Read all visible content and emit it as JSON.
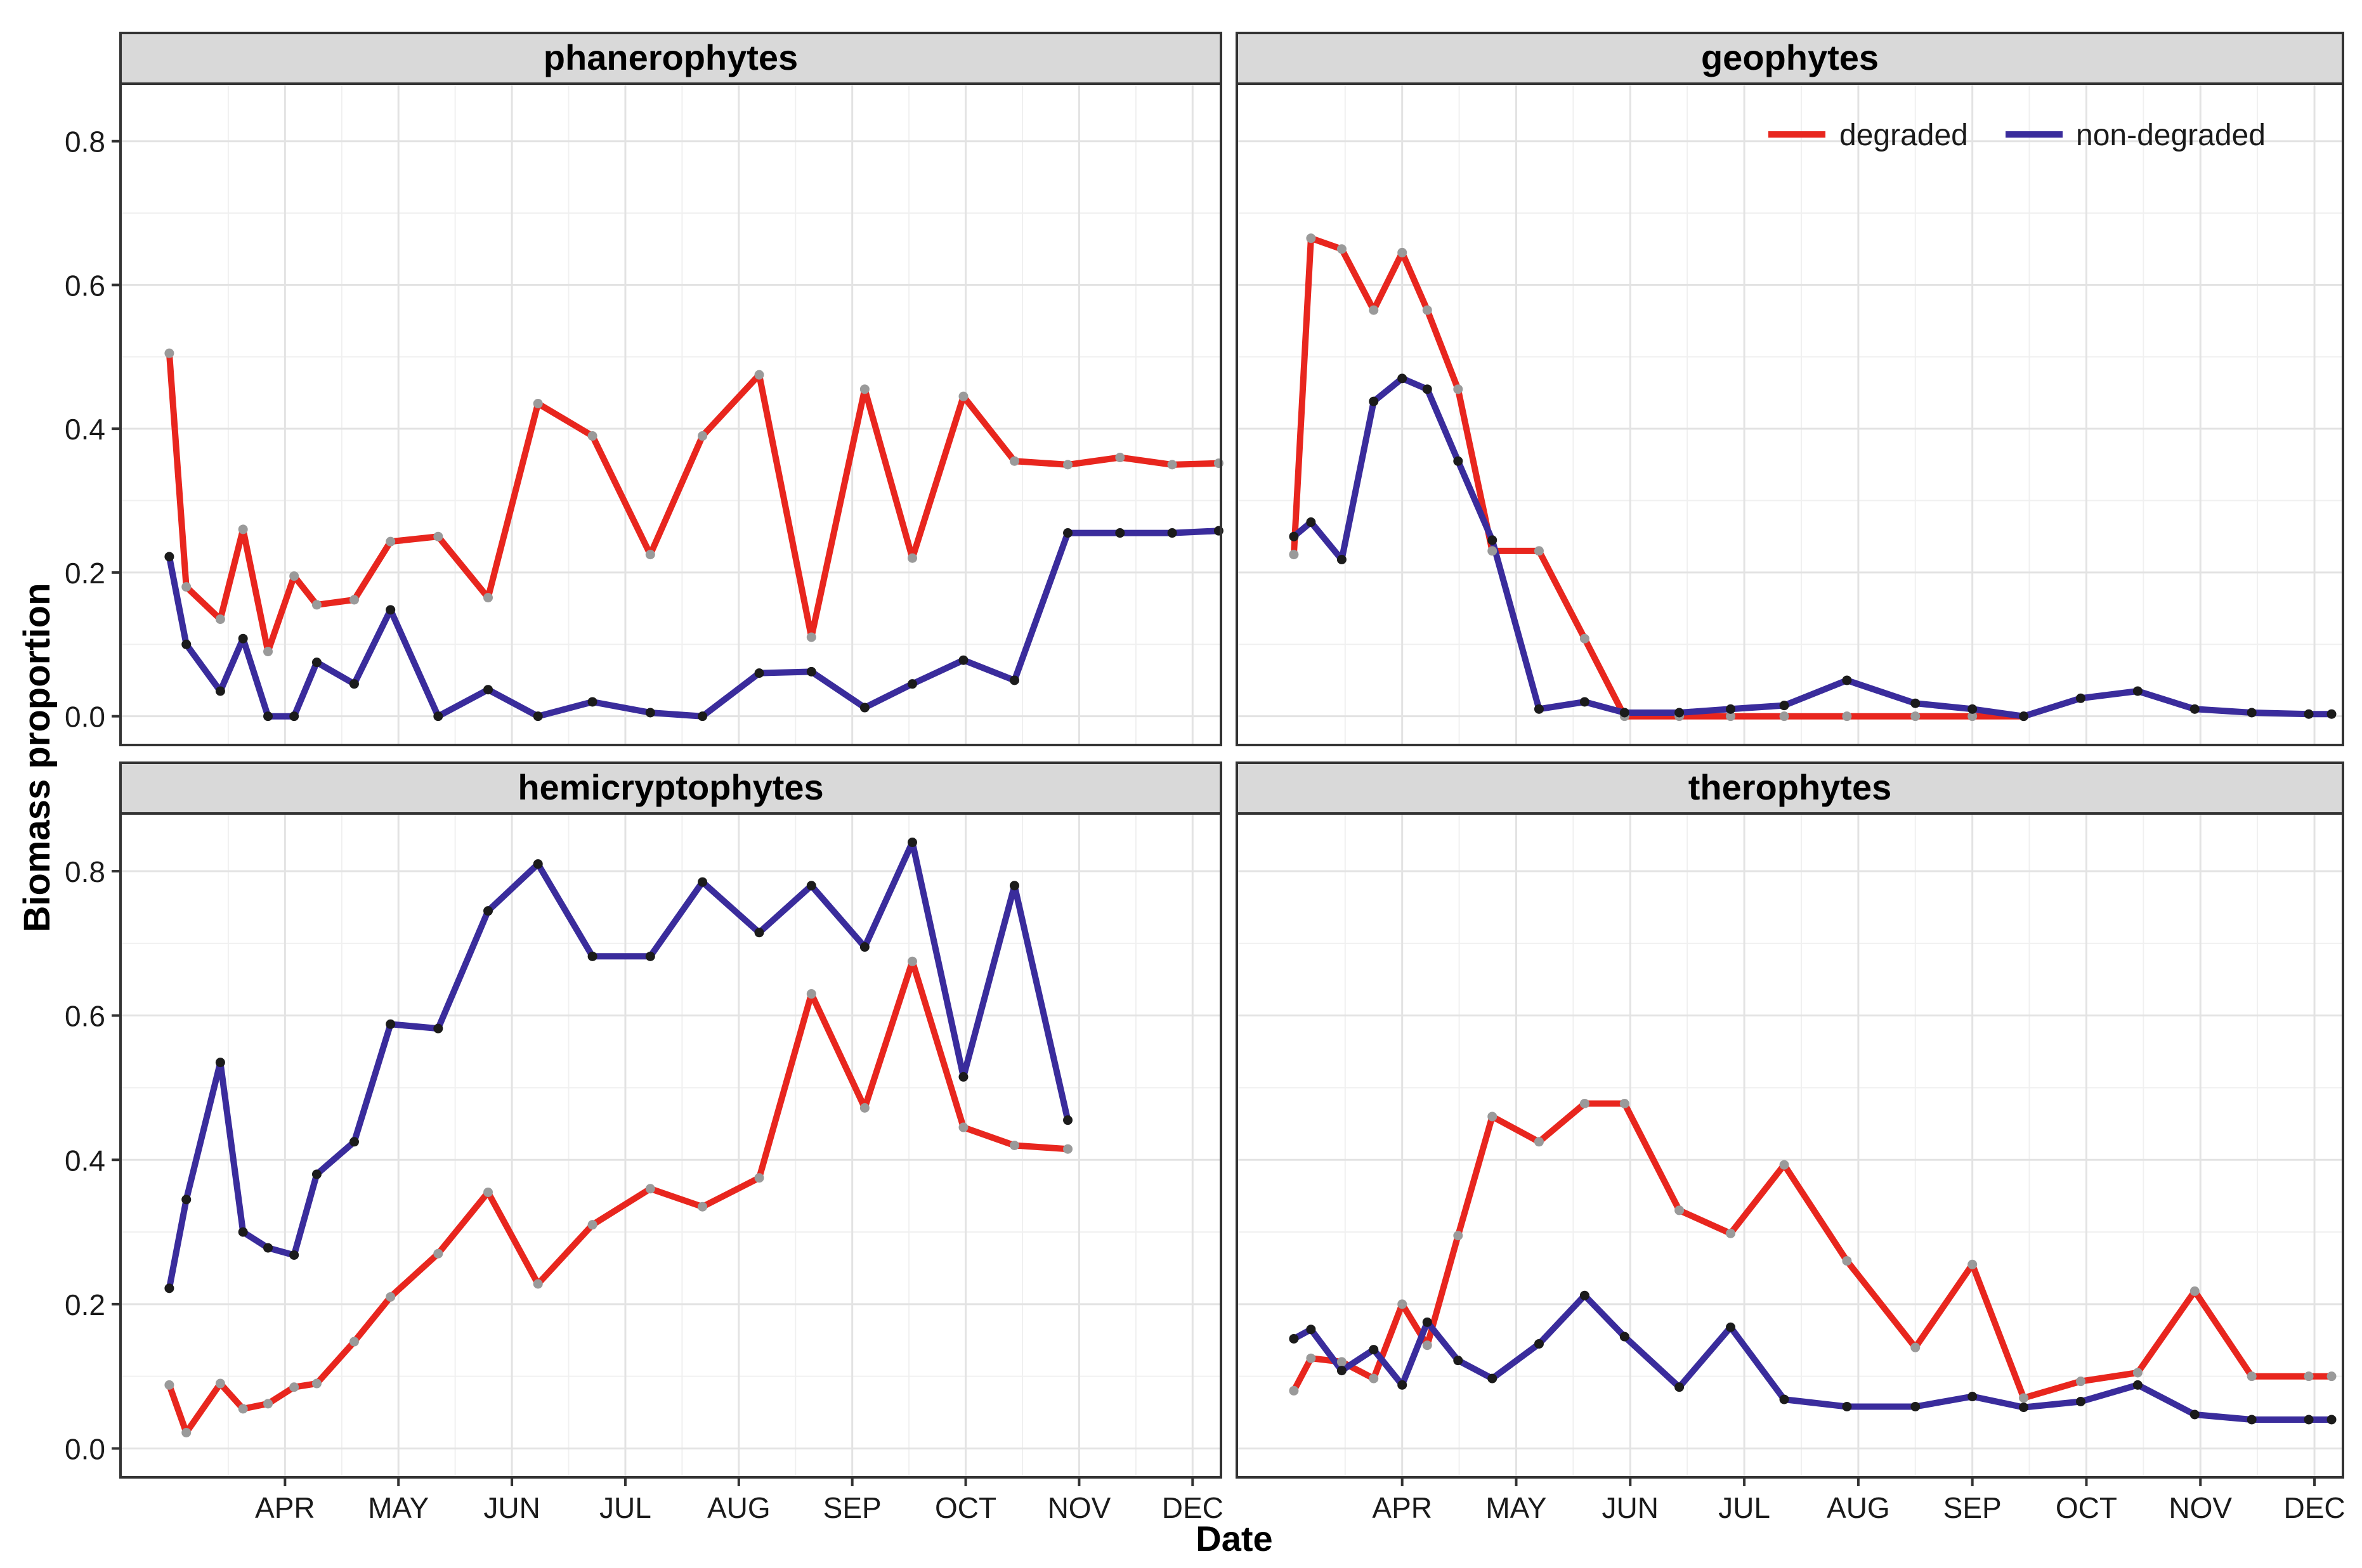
{
  "chart_data": {
    "type": "line",
    "facet_layout": "2x2",
    "xlabel": "Date",
    "ylabel": "Biomass proportion",
    "ylim": [
      -0.04,
      0.88
    ],
    "yticks": [
      0.0,
      0.2,
      0.4,
      0.6,
      0.8
    ],
    "ytick_labels": [
      "0.0",
      "0.2",
      "0.4",
      "0.6",
      "0.8"
    ],
    "xlim": [
      2.55,
      12.25
    ],
    "xticks": [
      4,
      5,
      6,
      7,
      8,
      9,
      10,
      11,
      12
    ],
    "xtick_labels": [
      "APR",
      "MAY",
      "JUN",
      "JUL",
      "AUG",
      "SEP",
      "OCT",
      "NOV",
      "DEC"
    ],
    "x_units": "month number (4 = 1 April)",
    "legend": {
      "placement": "top-right of geophytes panel",
      "entries": [
        {
          "label": "degraded",
          "color": "#e8261e"
        },
        {
          "label": "non-degraded",
          "color": "#3a2c9c"
        }
      ]
    },
    "panels": [
      {
        "title": "phanerophytes",
        "series": [
          {
            "name": "degraded",
            "x": [
              2.98,
              3.13,
              3.43,
              3.63,
              3.85,
              4.08,
              4.28,
              4.61,
              4.93,
              5.35,
              5.79,
              6.23,
              6.71,
              7.22,
              7.68,
              8.18,
              8.64,
              9.11,
              9.53,
              9.98,
              10.43,
              10.9,
              11.36,
              11.82,
              12.23
            ],
            "y": [
              0.505,
              0.18,
              0.135,
              0.26,
              0.09,
              0.195,
              0.155,
              0.162,
              0.243,
              0.25,
              0.165,
              0.435,
              0.39,
              0.225,
              0.39,
              0.475,
              0.11,
              0.455,
              0.22,
              0.445,
              0.355,
              0.35,
              0.36,
              0.35,
              0.352
            ]
          },
          {
            "name": "non-degraded",
            "x": [
              2.98,
              3.13,
              3.43,
              3.63,
              3.85,
              4.08,
              4.28,
              4.61,
              4.93,
              5.35,
              5.79,
              6.23,
              6.71,
              7.22,
              7.68,
              8.18,
              8.64,
              9.11,
              9.53,
              9.98,
              10.43,
              10.9,
              11.36,
              11.82,
              12.23
            ],
            "y": [
              0.222,
              0.1,
              0.035,
              0.108,
              0.0,
              0.0,
              0.075,
              0.045,
              0.148,
              0.0,
              0.037,
              0.0,
              0.02,
              0.005,
              0.0,
              0.06,
              0.062,
              0.012,
              0.045,
              0.078,
              0.05,
              0.255,
              0.255,
              0.255,
              0.258
            ]
          }
        ]
      },
      {
        "title": "geophytes",
        "series": [
          {
            "name": "degraded",
            "x": [
              3.05,
              3.2,
              3.47,
              3.75,
              4.0,
              4.22,
              4.49,
              4.79,
              5.2,
              5.6,
              5.95,
              6.43,
              6.88,
              7.35,
              7.9,
              8.5,
              9.0,
              9.45
            ],
            "y": [
              0.225,
              0.665,
              0.65,
              0.565,
              0.645,
              0.565,
              0.455,
              0.23,
              0.23,
              0.108,
              0.0,
              0.0,
              0.0,
              0.0,
              0.0,
              0.0,
              0.0,
              0.0
            ]
          },
          {
            "name": "non-degraded",
            "x": [
              3.05,
              3.2,
              3.47,
              3.75,
              4.0,
              4.22,
              4.49,
              4.79,
              5.2,
              5.6,
              5.95,
              6.43,
              6.88,
              7.35,
              7.9,
              8.5,
              9.0,
              9.45,
              9.95,
              10.45,
              10.95,
              11.45,
              11.95,
              12.15
            ],
            "y": [
              0.25,
              0.27,
              0.218,
              0.438,
              0.47,
              0.455,
              0.355,
              0.245,
              0.01,
              0.02,
              0.005,
              0.005,
              0.01,
              0.015,
              0.05,
              0.018,
              0.01,
              0.0,
              0.025,
              0.035,
              0.01,
              0.005,
              0.003,
              0.003
            ]
          }
        ]
      },
      {
        "title": "hemicryptophytes",
        "series": [
          {
            "name": "degraded",
            "x": [
              2.98,
              3.13,
              3.43,
              3.63,
              3.85,
              4.08,
              4.28,
              4.61,
              4.93,
              5.35,
              5.79,
              6.23,
              6.71,
              7.22,
              7.68,
              8.18,
              8.64,
              9.11,
              9.53,
              9.98,
              10.43,
              10.9
            ],
            "y": [
              0.088,
              0.022,
              0.09,
              0.055,
              0.062,
              0.085,
              0.09,
              0.148,
              0.21,
              0.27,
              0.355,
              0.228,
              0.31,
              0.36,
              0.335,
              0.375,
              0.63,
              0.472,
              0.675,
              0.445,
              0.42,
              0.415
            ]
          },
          {
            "name": "non-degraded",
            "x": [
              2.98,
              3.13,
              3.43,
              3.63,
              3.85,
              4.08,
              4.28,
              4.61,
              4.93,
              5.35,
              5.79,
              6.23,
              6.71,
              7.22,
              7.68,
              8.18,
              8.64,
              9.11,
              9.53,
              9.98,
              10.43,
              10.9
            ],
            "y": [
              0.222,
              0.345,
              0.535,
              0.3,
              0.278,
              0.268,
              0.38,
              0.425,
              0.588,
              0.582,
              0.745,
              0.81,
              0.682,
              0.682,
              0.785,
              0.715,
              0.78,
              0.695,
              0.84,
              0.515,
              0.78,
              0.455
            ]
          }
        ]
      },
      {
        "title": "therophytes",
        "series": [
          {
            "name": "degraded",
            "x": [
              3.05,
              3.2,
              3.47,
              3.75,
              4.0,
              4.22,
              4.49,
              4.79,
              5.2,
              5.6,
              5.95,
              6.43,
              6.88,
              7.35,
              7.9,
              8.5,
              9.0,
              9.45,
              9.95,
              10.45,
              10.95,
              11.45,
              11.95,
              12.15
            ],
            "y": [
              0.08,
              0.125,
              0.12,
              0.097,
              0.2,
              0.143,
              0.295,
              0.46,
              0.425,
              0.478,
              0.478,
              0.33,
              0.298,
              0.393,
              0.26,
              0.14,
              0.255,
              0.07,
              0.093,
              0.105,
              0.218,
              0.1,
              0.1,
              0.1
            ]
          },
          {
            "name": "non-degraded",
            "x": [
              3.05,
              3.2,
              3.47,
              3.75,
              4.0,
              4.22,
              4.49,
              4.79,
              5.2,
              5.6,
              5.95,
              6.43,
              6.88,
              7.35,
              7.9,
              8.5,
              9.0,
              9.45,
              9.95,
              10.45,
              10.95,
              11.45,
              11.95,
              12.15
            ],
            "y": [
              0.152,
              0.165,
              0.108,
              0.137,
              0.088,
              0.175,
              0.122,
              0.097,
              0.145,
              0.212,
              0.155,
              0.085,
              0.168,
              0.068,
              0.058,
              0.058,
              0.072,
              0.057,
              0.065,
              0.088,
              0.047,
              0.04,
              0.04,
              0.04
            ]
          }
        ]
      }
    ]
  }
}
